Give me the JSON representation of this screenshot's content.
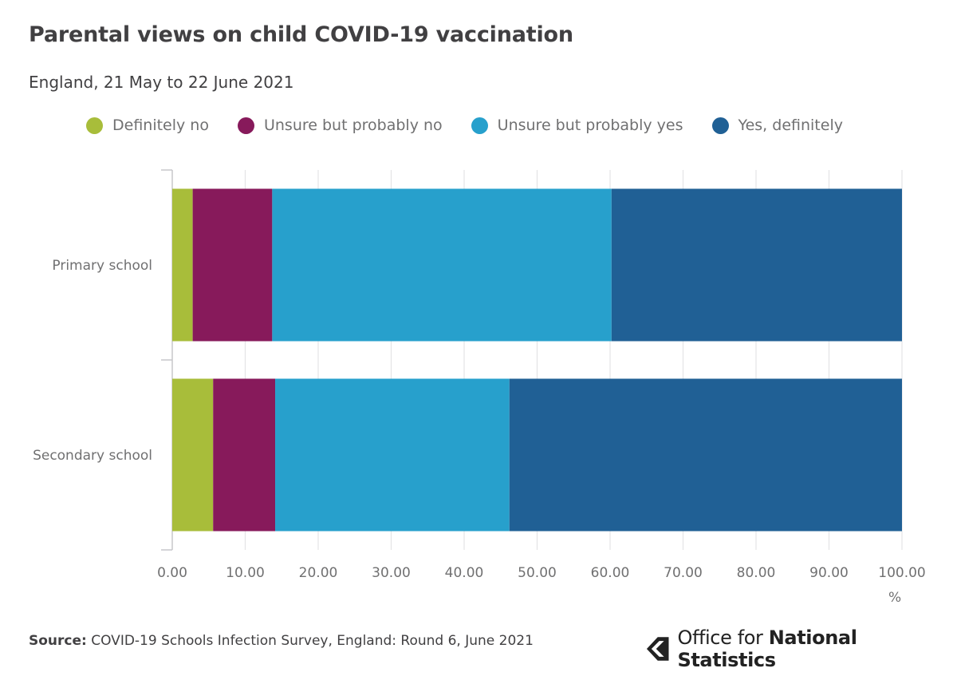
{
  "title": "Parental views on child COVID-19 vaccination",
  "subtitle": "England, 21 May to 22 June 2021",
  "unit_label": "%",
  "source": {
    "label": "Source:",
    "text": "COVID-19 Schools Infection Survey, England: Round 6, June 2021"
  },
  "logo": {
    "regular": "Office for",
    "bold": "National Statistics"
  },
  "colors": {
    "definitely_no": "#a8bd3a",
    "unsure_probably_no": "#871a5b",
    "unsure_probably_yes": "#27a0cc",
    "yes_definitely": "#206095"
  },
  "chart_data": {
    "type": "bar",
    "orientation": "horizontal",
    "stacked": true,
    "title": "Parental views on child COVID-19 vaccination",
    "subtitle": "England, 21 May to 22 June 2021",
    "categories": [
      "Primary school",
      "Secondary school"
    ],
    "series": [
      {
        "name": "Definitely no",
        "color": "#a8bd3a",
        "values": [
          2.8,
          5.6
        ]
      },
      {
        "name": "Unsure but probably no",
        "color": "#871a5b",
        "values": [
          10.9,
          8.5
        ]
      },
      {
        "name": "Unsure but probably yes",
        "color": "#27a0cc",
        "values": [
          46.5,
          32.1
        ]
      },
      {
        "name": "Yes, definitely",
        "color": "#206095",
        "values": [
          39.8,
          53.8
        ]
      }
    ],
    "xlim": [
      0,
      100
    ],
    "xticks": [
      "0.00",
      "10.00",
      "20.00",
      "30.00",
      "40.00",
      "50.00",
      "60.00",
      "70.00",
      "80.00",
      "90.00",
      "100.00"
    ],
    "xlabel": "%",
    "ylabel": "",
    "grid": true,
    "legend": "top"
  }
}
